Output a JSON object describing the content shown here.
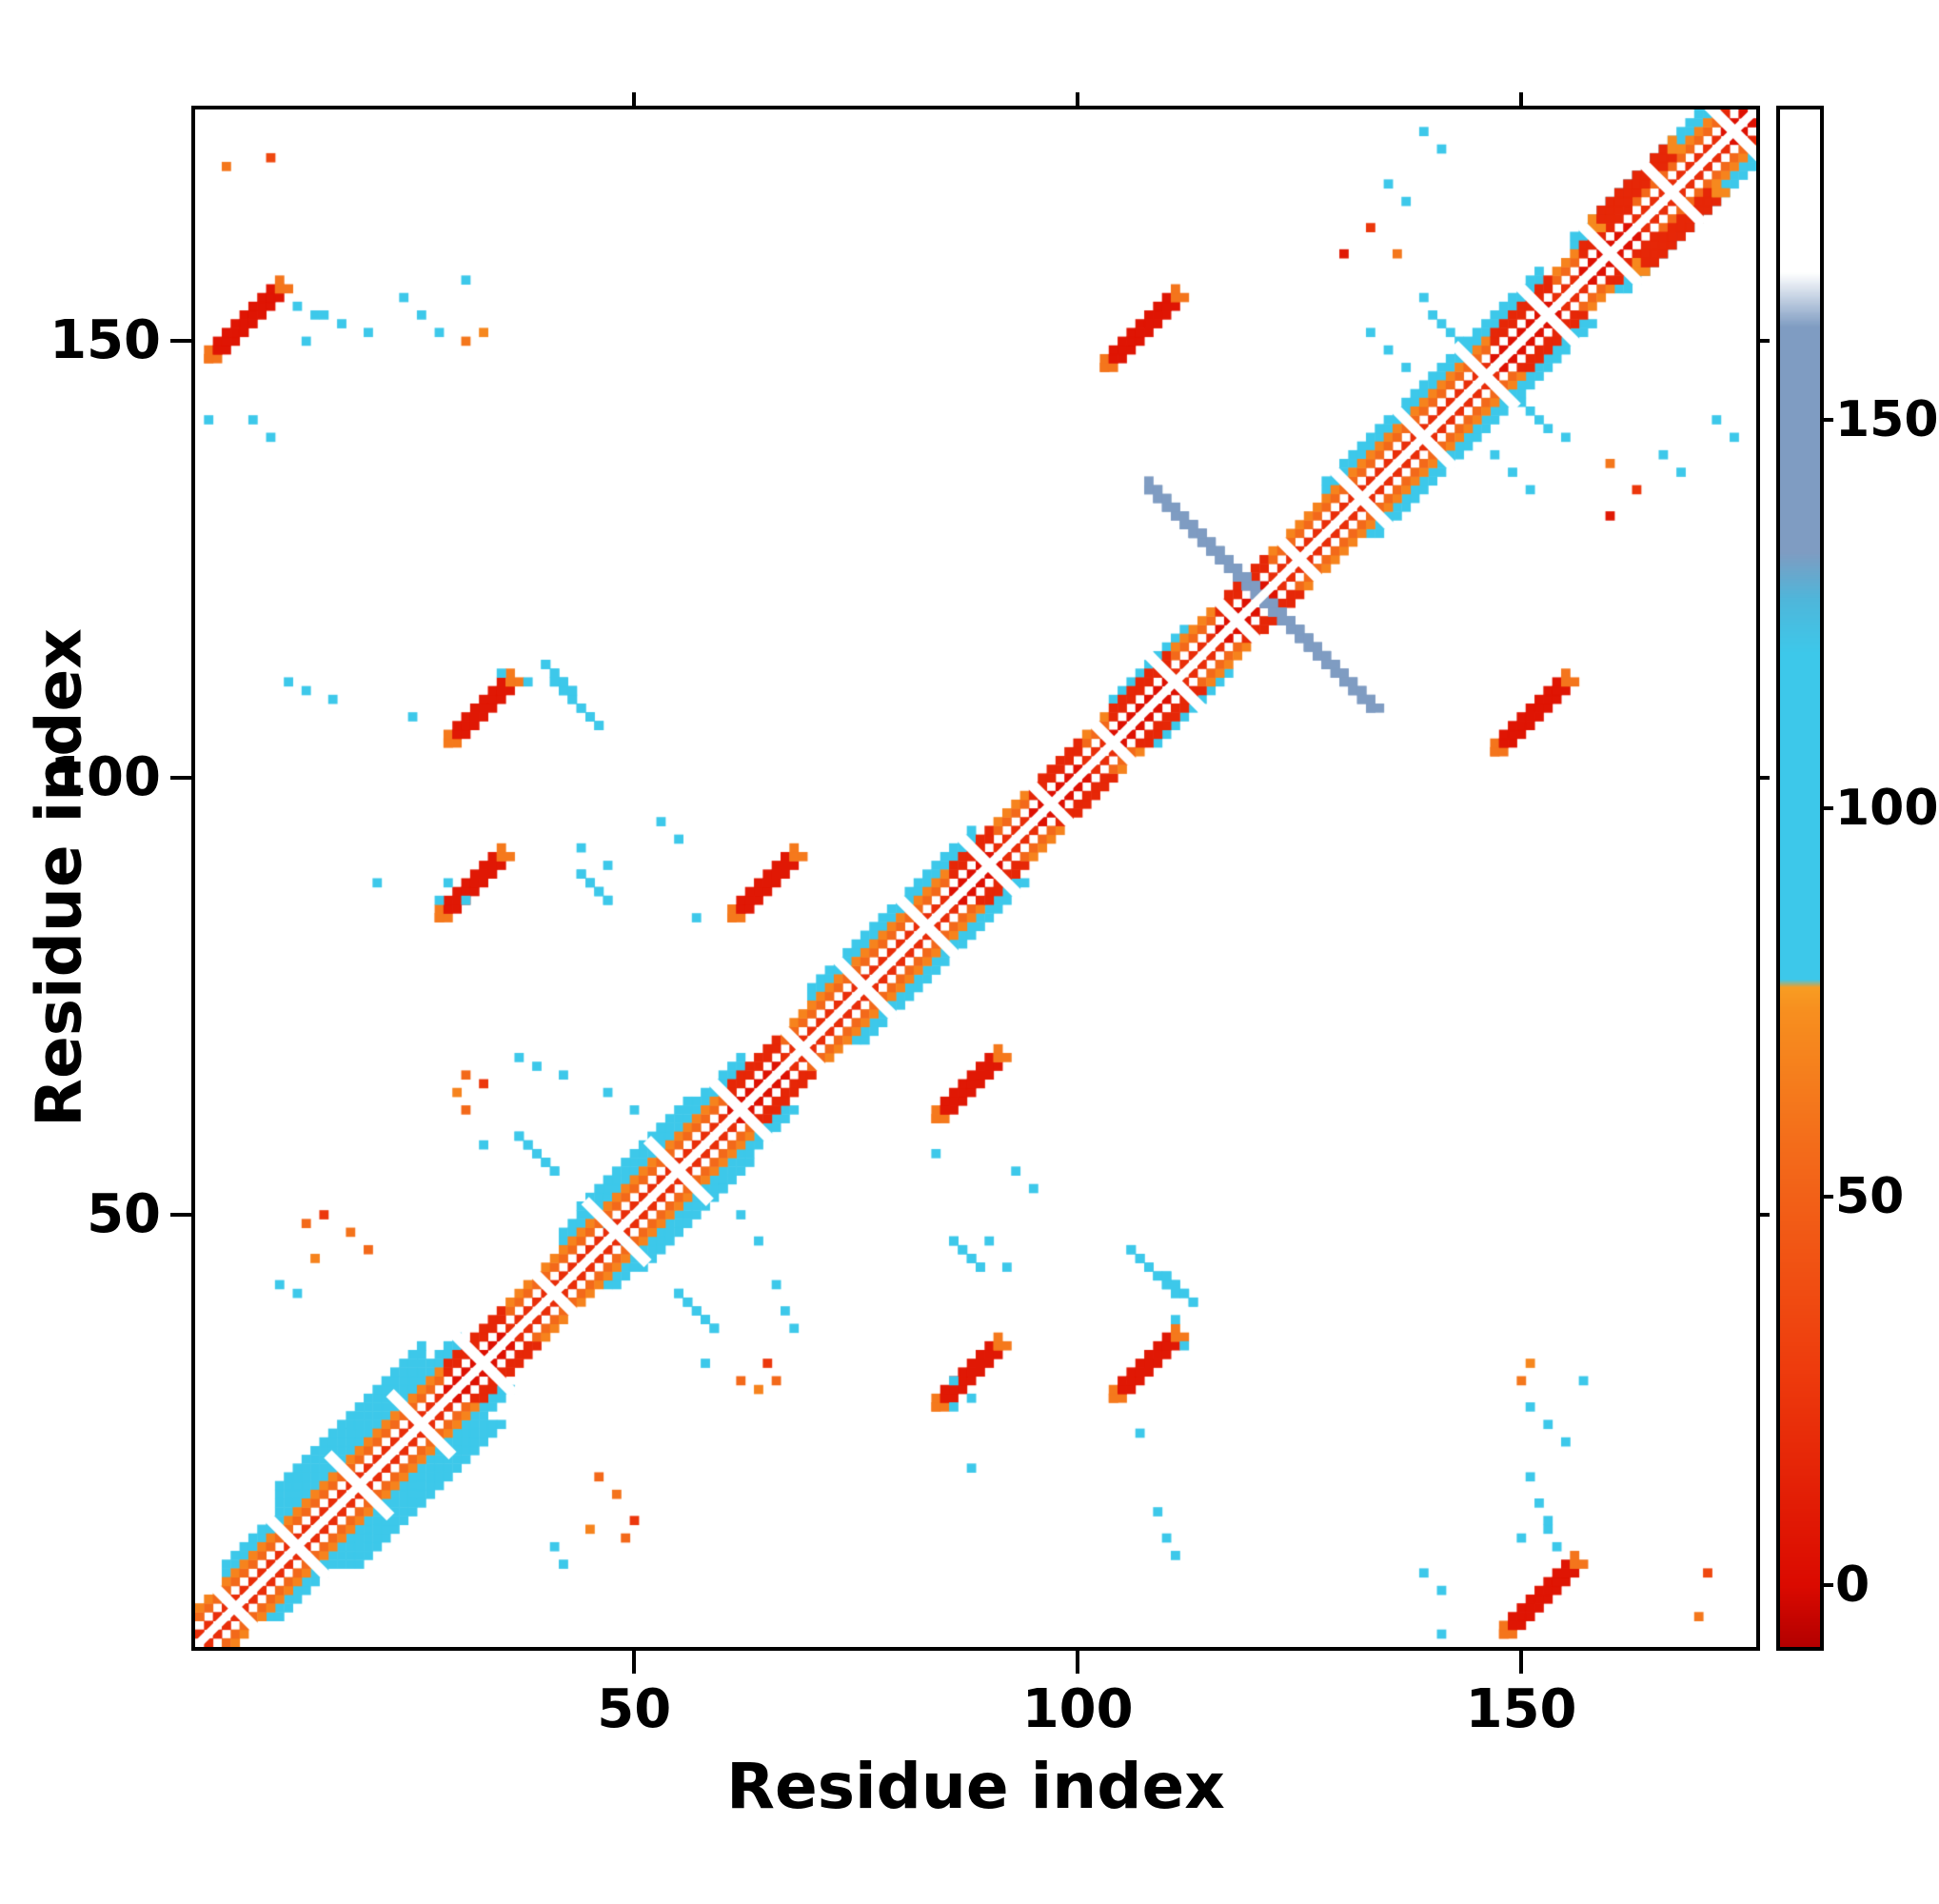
{
  "axes": {
    "xlabel": "Residue index",
    "ylabel": "Residue index",
    "xticks": [
      50,
      100,
      150
    ],
    "yticks": [
      50,
      100,
      150
    ],
    "residue_range": [
      1,
      176
    ]
  },
  "colorbar": {
    "ticks": [
      0,
      50,
      100,
      150
    ],
    "range": [
      -8,
      190
    ]
  },
  "colormap": [
    [
      -8,
      "#b30000"
    ],
    [
      0,
      "#db0a00"
    ],
    [
      28,
      "#ee3c0d"
    ],
    [
      55,
      "#f3691a"
    ],
    [
      74,
      "#f78f1f"
    ],
    [
      77,
      "#f89d22"
    ],
    [
      78,
      "#3dc8ea"
    ],
    [
      120,
      "#3dc8ea"
    ],
    [
      127,
      "#4fb6da"
    ],
    [
      133,
      "#7f9cc2"
    ],
    [
      162,
      "#7f9cc2"
    ],
    [
      169,
      "#ffffff"
    ],
    [
      190,
      "#ffffff"
    ]
  ],
  "chart_data": {
    "type": "heatmap",
    "title": "",
    "xlabel": "Residue index",
    "ylabel": "Residue index",
    "x_range": [
      1,
      176
    ],
    "y_range": [
      1,
      176
    ],
    "symmetric": true,
    "legend": "none",
    "grid": false,
    "diagonal": {
      "offsets": [
        1,
        3,
        4
      ],
      "values": [
        20,
        55,
        68
      ]
    },
    "deep_segments": [
      [
        29,
        35
      ],
      [
        61,
        66
      ],
      [
        86,
        90
      ],
      [
        95,
        100
      ],
      [
        104,
        110
      ],
      [
        116,
        121
      ],
      [
        147,
        153
      ],
      [
        157,
        162
      ],
      [
        173,
        176
      ]
    ],
    "flank_segments": [
      {
        "from": 4,
        "to": 30,
        "o0": 5,
        "o1": 6,
        "v": 100
      },
      {
        "from": 10,
        "to": 26,
        "o0": 7,
        "o1": 9,
        "v": 100
      },
      {
        "from": 42,
        "to": 62,
        "o0": 5,
        "o1": 6,
        "v": 100
      },
      {
        "from": 44,
        "to": 56,
        "o0": 7,
        "o1": 7,
        "v": 100
      },
      {
        "from": 70,
        "to": 88,
        "o0": 5,
        "o1": 6,
        "v": 100
      },
      {
        "from": 104,
        "to": 112,
        "o0": 5,
        "o1": 5,
        "v": 100
      },
      {
        "from": 128,
        "to": 152,
        "o0": 5,
        "o1": 6,
        "v": 100
      },
      {
        "from": 156,
        "to": 172,
        "o0": 5,
        "o1": 6,
        "v": 100
      }
    ],
    "gaps": [
      5,
      12,
      19,
      26,
      33,
      41,
      48,
      55,
      62,
      69,
      76,
      83,
      90,
      97,
      104,
      111,
      118,
      125,
      132,
      139,
      146,
      153,
      160,
      167,
      174
    ],
    "blobs": [
      {
        "x": 2,
        "y": 148,
        "len": 9,
        "w": 2,
        "v": 6,
        "dir": 1,
        "cap": true
      },
      {
        "x": 103,
        "y": 147,
        "len": 9,
        "w": 2,
        "v": 6,
        "dir": 1,
        "cap": true
      },
      {
        "x": 29,
        "y": 104,
        "len": 8,
        "w": 2,
        "v": 8,
        "dir": 1,
        "cap": true
      },
      {
        "x": 28,
        "y": 84,
        "len": 8,
        "w": 2,
        "v": 8,
        "dir": 1,
        "cap": true
      },
      {
        "x": 61,
        "y": 84,
        "len": 8,
        "w": 2,
        "v": 8,
        "dir": 1,
        "cap": true
      },
      {
        "x": 158,
        "y": 163,
        "len": 10,
        "w": 2,
        "v": 16,
        "dir": 1,
        "cap": true
      },
      {
        "x": 108,
        "y": 133,
        "len": 21,
        "w": 2,
        "v": 150,
        "dir": -1,
        "cap": false
      },
      {
        "x": 55,
        "y": 41,
        "len": 5,
        "w": 1,
        "v": 100,
        "dir": -1,
        "cap": false
      },
      {
        "x": 106,
        "y": 46,
        "len": 6,
        "w": 1,
        "v": 100,
        "dir": -1,
        "cap": false
      },
      {
        "x": 86,
        "y": 47,
        "len": 4,
        "w": 1,
        "v": 100,
        "dir": -1,
        "cap": false
      },
      {
        "x": 40,
        "y": 113,
        "len": 4,
        "w": 1,
        "v": 100,
        "dir": -1,
        "cap": false
      }
    ],
    "dots": [
      [
        2,
        141
      ],
      [
        12,
        154
      ],
      [
        14,
        153
      ],
      [
        17,
        152
      ],
      [
        20,
        151
      ],
      [
        31,
        150,
        62
      ],
      [
        33,
        151,
        70
      ],
      [
        11,
        111
      ],
      [
        13,
        110
      ],
      [
        16,
        109
      ],
      [
        25,
        107
      ],
      [
        21,
        88
      ],
      [
        28,
        86
      ],
      [
        44,
        92
      ],
      [
        47,
        90
      ],
      [
        31,
        66,
        55
      ],
      [
        33,
        65,
        25
      ],
      [
        37,
        68
      ],
      [
        39,
        67
      ],
      [
        42,
        66
      ],
      [
        47,
        64
      ],
      [
        50,
        62
      ],
      [
        53,
        60
      ],
      [
        13,
        49,
        55
      ],
      [
        15,
        50,
        25
      ],
      [
        18,
        48,
        60
      ],
      [
        14,
        45,
        68
      ],
      [
        20,
        46,
        55
      ],
      [
        10,
        42
      ],
      [
        12,
        41
      ],
      [
        49,
        47
      ],
      [
        51,
        45
      ],
      [
        58,
        33
      ],
      [
        62,
        31,
        55
      ],
      [
        64,
        30,
        68
      ],
      [
        86,
        31
      ],
      [
        88,
        29
      ],
      [
        93,
        55
      ],
      [
        95,
        53
      ],
      [
        84,
        57
      ],
      [
        111,
        38
      ],
      [
        112,
        35
      ],
      [
        141,
        7
      ],
      [
        139,
        9
      ],
      [
        151,
        28
      ],
      [
        153,
        26
      ],
      [
        155,
        24
      ],
      [
        157,
        31
      ],
      [
        150,
        13
      ],
      [
        153,
        15
      ],
      [
        135,
        168
      ],
      [
        137,
        166
      ],
      [
        133,
        151
      ],
      [
        135,
        149
      ],
      [
        137,
        147
      ],
      [
        140,
        153
      ],
      [
        142,
        151
      ],
      [
        150,
        143
      ],
      [
        152,
        141
      ],
      [
        155,
        139
      ],
      [
        130,
        160,
        8
      ],
      [
        160,
        136,
        62
      ],
      [
        163,
        133,
        25
      ],
      [
        172,
        141
      ],
      [
        174,
        139
      ],
      [
        4,
        170,
        62
      ],
      [
        9,
        171,
        35
      ]
    ]
  }
}
